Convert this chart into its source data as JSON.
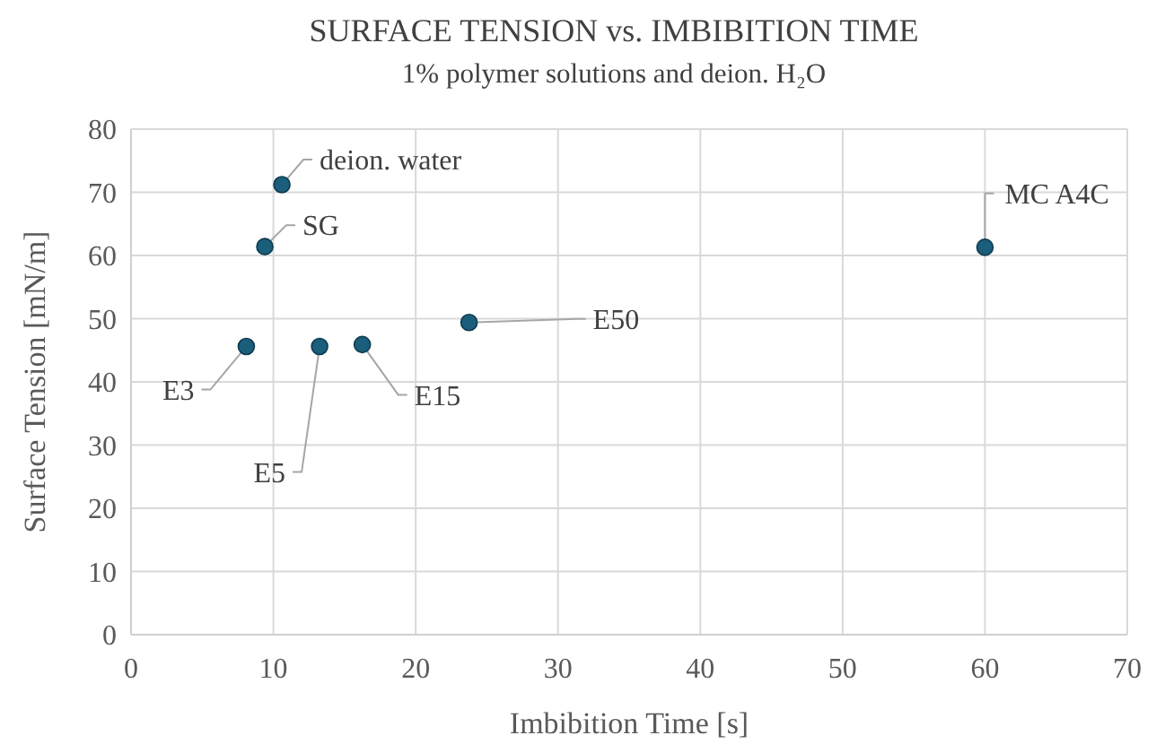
{
  "chart_data": {
    "type": "scatter",
    "title": "SURFACE TENSION vs. IMBIBITION TIME",
    "subtitle": "1% polymer solutions and deion. H₂O",
    "xlabel": "Imbibition Time [s]",
    "ylabel": "Surface Tension [mN/m]",
    "x": [
      10.6,
      9.4,
      8.1,
      13.25,
      16.25,
      23.75,
      60.0
    ],
    "series": [
      {
        "color": "#1b5e7b",
        "values": [
          71.2,
          61.4,
          45.6,
          45.6,
          45.9,
          49.4,
          61.3
        ]
      }
    ],
    "annotations": [
      {
        "text": "deion. water",
        "x": 10.6,
        "y": 71.2
      },
      {
        "text": "SG",
        "x": 9.4,
        "y": 61.4
      },
      {
        "text": "E3",
        "x": 8.1,
        "y": 45.6
      },
      {
        "text": "E5",
        "x": 13.25,
        "y": 45.6
      },
      {
        "text": "E15",
        "x": 16.25,
        "y": 45.9
      },
      {
        "text": "E50",
        "x": 23.75,
        "y": 49.4
      },
      {
        "text": "MC A4C",
        "x": 60.0,
        "y": 61.3
      }
    ],
    "xlim": [
      0,
      70
    ],
    "xticks": [
      0,
      10,
      20,
      30,
      40,
      50,
      60,
      70
    ],
    "ylim": [
      0,
      80
    ],
    "yticks": [
      0,
      10,
      20,
      30,
      40,
      50,
      60,
      70,
      80
    ],
    "grid": true,
    "marker": "circle"
  }
}
